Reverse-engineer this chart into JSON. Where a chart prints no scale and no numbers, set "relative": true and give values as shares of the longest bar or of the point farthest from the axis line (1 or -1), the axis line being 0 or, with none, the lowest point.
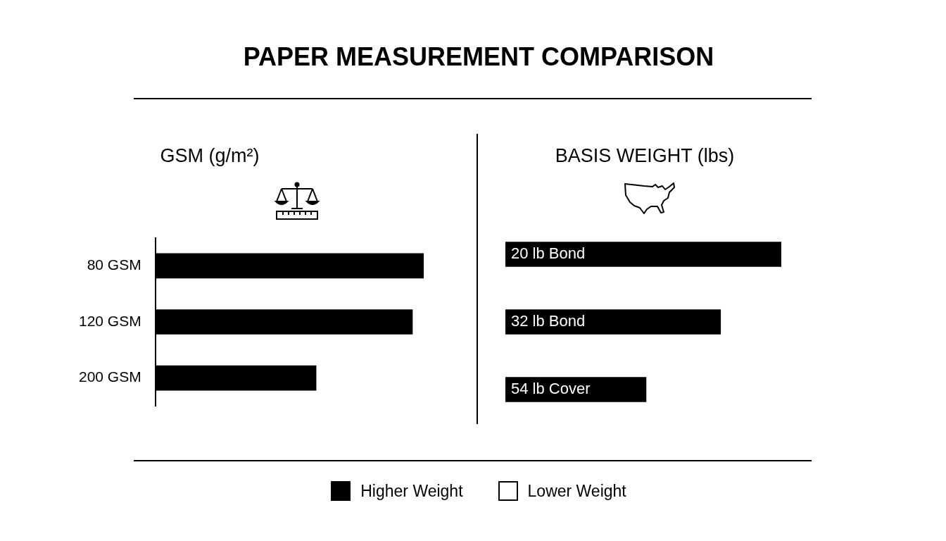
{
  "chart_data": [
    {
      "type": "bar",
      "orientation": "horizontal",
      "relative": true,
      "title": "PAPER MEASUREMENT COMPARISON",
      "subtitle": "GSM (g/m²)",
      "categories": [
        "80 GSM",
        "120 GSM",
        "200 GSM"
      ],
      "legend": "bottom",
      "series": [
        {
          "name": "Higher Weight",
          "color": "#000000",
          "values": [
            1,
            0.958,
            0.599
          ]
        },
        {
          "name": "Lower Weight",
          "color": "#ffffff",
          "values": [
            null,
            null,
            null
          ]
        }
      ]
    },
    {
      "type": "bar",
      "orientation": "horizontal",
      "relative": true,
      "subtitle": "BASIS WEIGHT (lbs)",
      "categories": [
        "20 lb Bond",
        "32 lb Bond",
        "54 lb Cover"
      ],
      "series": [
        {
          "color": "#000000",
          "values": [
            1,
            0.78,
            0.51
          ]
        }
      ]
    }
  ]
}
